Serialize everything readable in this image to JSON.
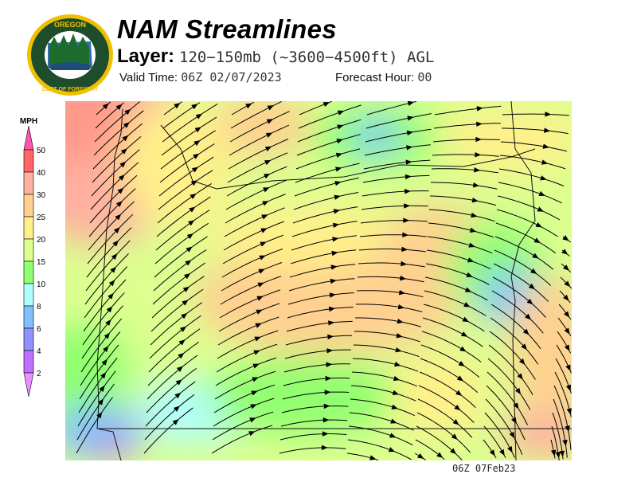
{
  "logo": {
    "text_top": "OREGON",
    "text_bottom": "DEPARTMENT OF FORESTRY",
    "colors": {
      "ring": "#f0c000",
      "field": "#1e4d2b"
    }
  },
  "header": {
    "title": "NAM Streamlines",
    "layer_label": "Layer:",
    "layer_value": "120−150mb (~3600−4500ft) AGL",
    "valid_label": "Valid Time:",
    "valid_value": "06Z 02/07/2023",
    "forecast_label": "Forecast Hour:",
    "forecast_value": "00"
  },
  "legend": {
    "unit": "MPH",
    "ticks": [
      "50",
      "40",
      "30",
      "25",
      "20",
      "15",
      "10",
      "8",
      "6",
      "4",
      "2"
    ],
    "colors": [
      "#ff6666",
      "#ffb0a0",
      "#ffd090",
      "#fff08a",
      "#dcff90",
      "#90ff70",
      "#b0ffff",
      "#80c0ff",
      "#9090ff",
      "#c070ff"
    ],
    "over_color": "#ff55aa",
    "under_color": "#e890ff"
  },
  "map": {
    "variable": "wind speed streamlines",
    "region": "Oregon"
  },
  "footer": {
    "stamp": "06Z 07Feb23"
  }
}
